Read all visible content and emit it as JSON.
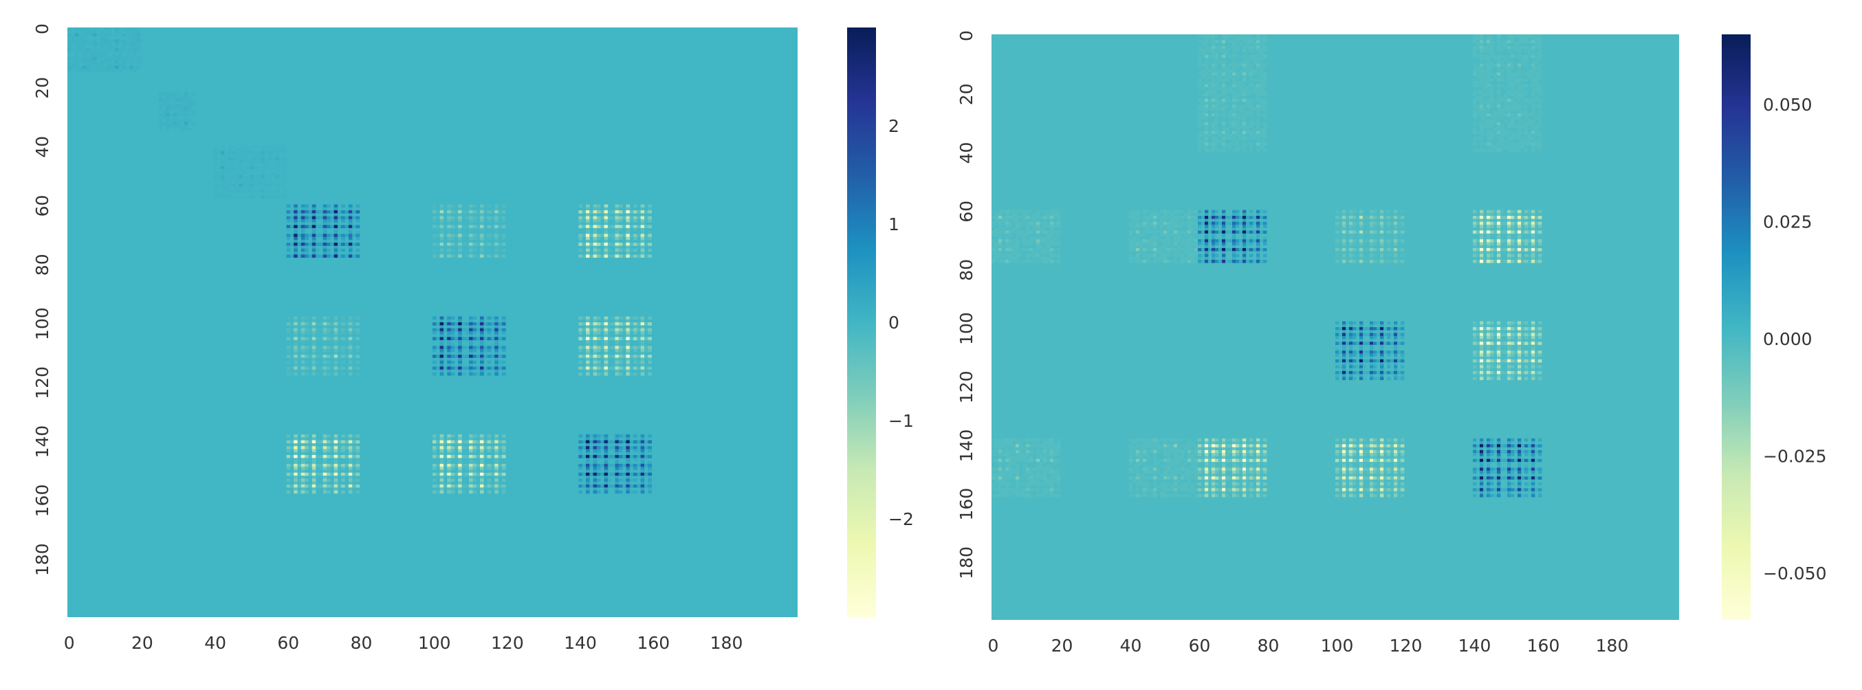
{
  "chart_data": [
    {
      "type": "heatmap",
      "title": "",
      "xlabel": "",
      "ylabel": "",
      "x_ticks": [
        0,
        20,
        40,
        60,
        80,
        100,
        120,
        140,
        160,
        180
      ],
      "y_ticks": [
        0,
        20,
        40,
        60,
        80,
        100,
        120,
        140,
        160,
        180
      ],
      "x_range": [
        0,
        200
      ],
      "y_range": [
        0,
        200
      ],
      "y_axis_inverted": true,
      "background_value": 0,
      "colormap": "YlGnBu",
      "colorbar": {
        "min": -3,
        "max": 3,
        "ticks": [
          2,
          1,
          0,
          -1,
          -2
        ],
        "tick_labels": [
          "2",
          "1",
          "0",
          "−1",
          "−2"
        ]
      },
      "blocks": [
        {
          "rows": [
            0,
            15
          ],
          "cols": [
            0,
            20
          ],
          "peak": 0.3,
          "pattern": "faint"
        },
        {
          "rows": [
            22,
            35
          ],
          "cols": [
            25,
            35
          ],
          "peak": 0.3,
          "pattern": "faint"
        },
        {
          "rows": [
            40,
            58
          ],
          "cols": [
            40,
            60
          ],
          "peak": 0.25,
          "pattern": "faint"
        },
        {
          "rows": [
            60,
            78
          ],
          "cols": [
            60,
            80
          ],
          "peak": 2.9,
          "pattern": "positive"
        },
        {
          "rows": [
            60,
            78
          ],
          "cols": [
            100,
            120
          ],
          "peak": -1.0,
          "pattern": "negative"
        },
        {
          "rows": [
            60,
            78
          ],
          "cols": [
            140,
            160
          ],
          "peak": -2.6,
          "pattern": "negative"
        },
        {
          "rows": [
            98,
            118
          ],
          "cols": [
            60,
            80
          ],
          "peak": -1.0,
          "pattern": "negative"
        },
        {
          "rows": [
            98,
            118
          ],
          "cols": [
            100,
            120
          ],
          "peak": 2.8,
          "pattern": "positive"
        },
        {
          "rows": [
            98,
            118
          ],
          "cols": [
            140,
            160
          ],
          "peak": -2.6,
          "pattern": "negative"
        },
        {
          "rows": [
            138,
            158
          ],
          "cols": [
            60,
            80
          ],
          "peak": -2.6,
          "pattern": "negative"
        },
        {
          "rows": [
            138,
            158
          ],
          "cols": [
            100,
            120
          ],
          "peak": -2.6,
          "pattern": "negative"
        },
        {
          "rows": [
            138,
            158
          ],
          "cols": [
            140,
            160
          ],
          "peak": 2.9,
          "pattern": "positive"
        }
      ]
    },
    {
      "type": "heatmap",
      "title": "",
      "xlabel": "",
      "ylabel": "",
      "x_ticks": [
        0,
        20,
        40,
        60,
        80,
        100,
        120,
        140,
        160,
        180
      ],
      "y_ticks": [
        0,
        20,
        40,
        60,
        80,
        100,
        120,
        140,
        160,
        180
      ],
      "x_range": [
        0,
        200
      ],
      "y_range": [
        0,
        200
      ],
      "y_axis_inverted": true,
      "background_value": 0,
      "colormap": "YlGnBu",
      "colorbar": {
        "min": -0.06,
        "max": 0.065,
        "ticks": [
          0.05,
          0.025,
          0.0,
          -0.025,
          -0.05
        ],
        "tick_labels": [
          "0.050",
          "0.025",
          "0.000",
          "−0.025",
          "−0.050"
        ]
      },
      "blocks": [
        {
          "rows": [
            0,
            40
          ],
          "cols": [
            60,
            80
          ],
          "peak": -0.01,
          "pattern": "faint"
        },
        {
          "rows": [
            0,
            40
          ],
          "cols": [
            140,
            160
          ],
          "peak": -0.01,
          "pattern": "faint"
        },
        {
          "rows": [
            60,
            78
          ],
          "cols": [
            0,
            20
          ],
          "peak": -0.012,
          "pattern": "faint"
        },
        {
          "rows": [
            60,
            78
          ],
          "cols": [
            40,
            60
          ],
          "peak": -0.012,
          "pattern": "faint"
        },
        {
          "rows": [
            60,
            78
          ],
          "cols": [
            60,
            80
          ],
          "peak": 0.065,
          "pattern": "positive"
        },
        {
          "rows": [
            60,
            78
          ],
          "cols": [
            100,
            120
          ],
          "peak": -0.02,
          "pattern": "negative"
        },
        {
          "rows": [
            60,
            78
          ],
          "cols": [
            140,
            160
          ],
          "peak": -0.06,
          "pattern": "negative"
        },
        {
          "rows": [
            98,
            118
          ],
          "cols": [
            100,
            120
          ],
          "peak": 0.06,
          "pattern": "positive"
        },
        {
          "rows": [
            98,
            118
          ],
          "cols": [
            140,
            160
          ],
          "peak": -0.055,
          "pattern": "negative"
        },
        {
          "rows": [
            138,
            158
          ],
          "cols": [
            0,
            20
          ],
          "peak": -0.012,
          "pattern": "faint"
        },
        {
          "rows": [
            138,
            158
          ],
          "cols": [
            40,
            60
          ],
          "peak": -0.012,
          "pattern": "faint"
        },
        {
          "rows": [
            138,
            158
          ],
          "cols": [
            60,
            80
          ],
          "peak": -0.06,
          "pattern": "negative"
        },
        {
          "rows": [
            138,
            158
          ],
          "cols": [
            100,
            120
          ],
          "peak": -0.055,
          "pattern": "negative"
        },
        {
          "rows": [
            138,
            158
          ],
          "cols": [
            140,
            160
          ],
          "peak": 0.065,
          "pattern": "positive"
        }
      ]
    }
  ]
}
